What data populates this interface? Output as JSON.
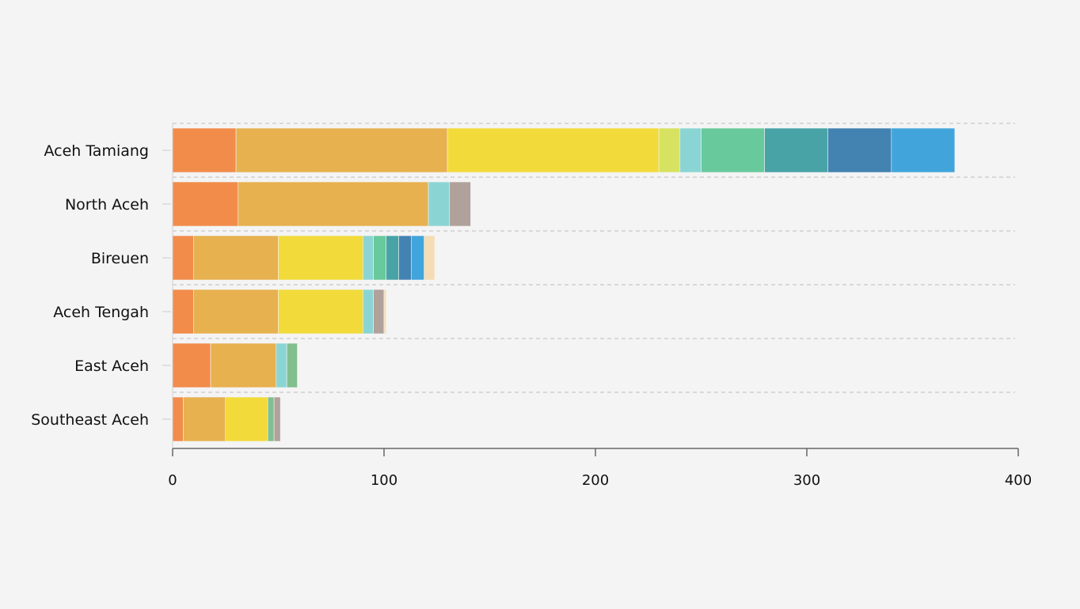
{
  "chart_data": {
    "type": "bar",
    "orientation": "horizontal",
    "stacked": true,
    "categories": [
      "Aceh Tamiang",
      "North Aceh",
      "Bireuen",
      "Aceh Tengah",
      "East Aceh",
      "Southeast Aceh"
    ],
    "series": [
      {
        "color": "#f28c4b",
        "values": [
          30,
          31,
          10,
          10,
          18,
          5
        ]
      },
      {
        "color": "#e7b14f",
        "values": [
          100,
          90,
          40,
          40,
          31,
          20
        ]
      },
      {
        "color": "#f2da3a",
        "values": [
          100,
          0,
          40,
          40,
          0,
          20
        ]
      },
      {
        "color": "#d6e260",
        "values": [
          10,
          0,
          0,
          0,
          0,
          0
        ]
      },
      {
        "color": "#8ad5d4",
        "values": [
          10,
          10,
          5,
          5,
          5,
          0
        ]
      },
      {
        "color": "#68c99c",
        "values": [
          30,
          0,
          6,
          0,
          0,
          0
        ]
      },
      {
        "color": "#82bf8f",
        "values": [
          0,
          0,
          0,
          0,
          5,
          3
        ]
      },
      {
        "color": "#48a3a6",
        "values": [
          30,
          0,
          6,
          0,
          0,
          0
        ]
      },
      {
        "color": "#4383b2",
        "values": [
          30,
          0,
          6,
          0,
          0,
          0
        ]
      },
      {
        "color": "#41a5dc",
        "values": [
          30,
          0,
          6,
          0,
          0,
          0
        ]
      },
      {
        "color": "#b0a19b",
        "values": [
          0,
          10,
          0,
          5,
          0,
          3
        ]
      },
      {
        "color": "#f5dcb4",
        "values": [
          0,
          0,
          5,
          1,
          0,
          0
        ]
      }
    ],
    "xlim": [
      0,
      400
    ],
    "xticks": [
      0,
      100,
      200,
      300,
      400
    ],
    "title": "",
    "xlabel": "",
    "ylabel": "",
    "grid": true,
    "legend": "none"
  }
}
